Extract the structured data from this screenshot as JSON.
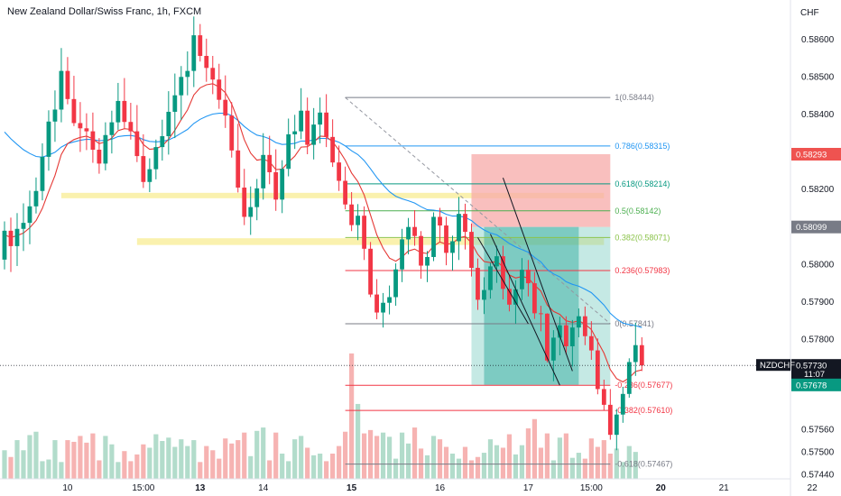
{
  "chart_data": {
    "type": "candlestick",
    "title": "New Zealand Dollar/Swiss Franc, 1h, FXCM",
    "currency": "CHF",
    "symbol": "NZDCHF",
    "ylim": [
      0.5743,
      0.5868
    ],
    "y_ticks": [
      {
        "value": 0.586,
        "label": "0.58600"
      },
      {
        "value": 0.585,
        "label": "0.58500"
      },
      {
        "value": 0.584,
        "label": "0.58400"
      },
      {
        "value": 0.582,
        "label": "0.58200"
      },
      {
        "value": 0.58,
        "label": "0.58000"
      },
      {
        "value": 0.579,
        "label": "0.57900"
      },
      {
        "value": 0.578,
        "label": "0.57800"
      },
      {
        "value": 0.5756,
        "label": "0.57560"
      },
      {
        "value": 0.575,
        "label": "0.57500"
      },
      {
        "value": 0.5744,
        "label": "0.57440"
      }
    ],
    "x_ticks": [
      {
        "bar": 10,
        "label": "10",
        "bold": false
      },
      {
        "bar": 22,
        "label": "15:00",
        "bold": false
      },
      {
        "bar": 31,
        "label": "13",
        "bold": true
      },
      {
        "bar": 41,
        "label": "14",
        "bold": false
      },
      {
        "bar": 55,
        "label": "15",
        "bold": true
      },
      {
        "bar": 69,
        "label": "16",
        "bold": false
      },
      {
        "bar": 83,
        "label": "17",
        "bold": false
      },
      {
        "bar": 93,
        "label": "15:00",
        "bold": false
      },
      {
        "bar": 104,
        "label": "20",
        "bold": true
      },
      {
        "bar": 114,
        "label": "21",
        "bold": false
      },
      {
        "bar": 128,
        "label": "22",
        "bold": false
      }
    ],
    "price_tags": [
      {
        "value": 0.58293,
        "label": "0.58293",
        "bg": "#ef5350",
        "fg": "#ffffff"
      },
      {
        "value": 0.58099,
        "label": "0.58099",
        "bg": "#787b86",
        "fg": "#ffffff"
      },
      {
        "value": 0.5773,
        "label": "0.57730",
        "sub": "11:07",
        "name": "NZDCHF",
        "bg": "#131722",
        "fg": "#ffffff"
      },
      {
        "value": 0.57678,
        "label": "0.57678",
        "bg": "#089981",
        "fg": "#ffffff"
      }
    ],
    "fib_levels": [
      {
        "ratio": "1",
        "value": 0.58444,
        "label": "1(0.58444)",
        "color": "#787b86"
      },
      {
        "ratio": "0.786",
        "value": 0.58315,
        "label": "0.786(0.58315)",
        "color": "#2196f3"
      },
      {
        "ratio": "0.618",
        "value": 0.58214,
        "label": "0.618(0.58214)",
        "color": "#089981"
      },
      {
        "ratio": "0.5",
        "value": 0.58142,
        "label": "0.5(0.58142)",
        "color": "#4caf50"
      },
      {
        "ratio": "0.382",
        "value": 0.58071,
        "label": "0.382(0.58071)",
        "color": "#8bc34a"
      },
      {
        "ratio": "0.236",
        "value": 0.57983,
        "label": "0.236(0.57983)",
        "color": "#f23645"
      },
      {
        "ratio": "0",
        "value": 0.57841,
        "label": "0(0.57841)",
        "color": "#787b86"
      },
      {
        "ratio": "-0.236",
        "value": 0.57677,
        "label": "-0.236(0.57677)",
        "color": "#f23645"
      },
      {
        "ratio": "-0.382",
        "value": 0.5761,
        "label": "-0.382(0.57610)",
        "color": "#f23645"
      },
      {
        "ratio": "-0.618",
        "value": 0.57467,
        "label": "-0.618(0.57467)",
        "color": "#787b86"
      }
    ],
    "position_box": {
      "entry": 0.58099,
      "stop": 0.58293,
      "target": 0.57678,
      "start_bar": 74,
      "end_bar": 96
    },
    "zones": [
      {
        "low": 0.5818,
        "high": 0.5819,
        "start_bar": 9,
        "end_bar": 95
      },
      {
        "low": 0.58051,
        "high": 0.58069,
        "start_bar": 21,
        "end_bar": 95
      }
    ],
    "candles": [
      [
        0.58012,
        0.58114,
        0.57986,
        0.58089
      ],
      [
        0.58089,
        0.58124,
        0.57979,
        0.58048
      ],
      [
        0.58048,
        0.58136,
        0.57995,
        0.58094
      ],
      [
        0.58094,
        0.58162,
        0.58035,
        0.5811
      ],
      [
        0.5811,
        0.58196,
        0.58053,
        0.58154
      ],
      [
        0.58154,
        0.58231,
        0.58135,
        0.58195
      ],
      [
        0.58195,
        0.58322,
        0.5817,
        0.58286
      ],
      [
        0.58286,
        0.5841,
        0.58249,
        0.5838
      ],
      [
        0.5838,
        0.58463,
        0.58326,
        0.58412
      ],
      [
        0.58412,
        0.58576,
        0.58378,
        0.58515
      ],
      [
        0.58515,
        0.58552,
        0.58426,
        0.5844
      ],
      [
        0.5844,
        0.58502,
        0.58368,
        0.58376
      ],
      [
        0.58376,
        0.58432,
        0.58299,
        0.58362
      ],
      [
        0.58362,
        0.58402,
        0.58304,
        0.58354
      ],
      [
        0.58354,
        0.58404,
        0.5827,
        0.58305
      ],
      [
        0.58305,
        0.58336,
        0.58241,
        0.58268
      ],
      [
        0.58268,
        0.58378,
        0.5825,
        0.58344
      ],
      [
        0.58344,
        0.58409,
        0.58295,
        0.58378
      ],
      [
        0.58378,
        0.58483,
        0.58358,
        0.58435
      ],
      [
        0.58435,
        0.58496,
        0.58362,
        0.58379
      ],
      [
        0.58379,
        0.5843,
        0.58332,
        0.58354
      ],
      [
        0.58354,
        0.58424,
        0.58272,
        0.58288
      ],
      [
        0.58288,
        0.58346,
        0.58203,
        0.58219
      ],
      [
        0.58219,
        0.58282,
        0.58192,
        0.58253
      ],
      [
        0.58253,
        0.58332,
        0.58226,
        0.58312
      ],
      [
        0.58312,
        0.58385,
        0.58276,
        0.58341
      ],
      [
        0.58341,
        0.58461,
        0.58292,
        0.58406
      ],
      [
        0.58406,
        0.58508,
        0.58336,
        0.5845
      ],
      [
        0.5845,
        0.58528,
        0.58384,
        0.58499
      ],
      [
        0.58499,
        0.58567,
        0.5845,
        0.58515
      ],
      [
        0.58515,
        0.5866,
        0.58472,
        0.5861
      ],
      [
        0.5861,
        0.5864,
        0.5854,
        0.58555
      ],
      [
        0.58555,
        0.58601,
        0.58486,
        0.58523
      ],
      [
        0.58523,
        0.58555,
        0.58453,
        0.58492
      ],
      [
        0.58492,
        0.58534,
        0.58414,
        0.58438
      ],
      [
        0.58438,
        0.58503,
        0.58363,
        0.58396
      ],
      [
        0.58396,
        0.58432,
        0.58284,
        0.58303
      ],
      [
        0.58303,
        0.58374,
        0.58191,
        0.58204
      ],
      [
        0.58204,
        0.58254,
        0.58104,
        0.58126
      ],
      [
        0.58126,
        0.58207,
        0.58078,
        0.58152
      ],
      [
        0.58152,
        0.58227,
        0.58117,
        0.58202
      ],
      [
        0.58202,
        0.58349,
        0.58172,
        0.58291
      ],
      [
        0.58291,
        0.58342,
        0.58213,
        0.58245
      ],
      [
        0.58245,
        0.58306,
        0.58142,
        0.58172
      ],
      [
        0.58172,
        0.58277,
        0.58136,
        0.58254
      ],
      [
        0.58254,
        0.58388,
        0.58234,
        0.58346
      ],
      [
        0.58346,
        0.58398,
        0.58307,
        0.58354
      ],
      [
        0.58354,
        0.58469,
        0.58333,
        0.58409
      ],
      [
        0.58409,
        0.58444,
        0.58293,
        0.58318
      ],
      [
        0.58318,
        0.58416,
        0.58279,
        0.58372
      ],
      [
        0.58372,
        0.58444,
        0.58322,
        0.58404
      ],
      [
        0.58404,
        0.58453,
        0.58312,
        0.58339
      ],
      [
        0.58339,
        0.58386,
        0.58259,
        0.58271
      ],
      [
        0.58271,
        0.58316,
        0.58195,
        0.58222
      ],
      [
        0.58222,
        0.5826,
        0.58146,
        0.58159
      ],
      [
        0.58159,
        0.58192,
        0.58088,
        0.58104
      ],
      [
        0.58104,
        0.5816,
        0.58064,
        0.58129
      ],
      [
        0.58129,
        0.58154,
        0.58011,
        0.58041
      ],
      [
        0.58041,
        0.58059,
        0.57912,
        0.57919
      ],
      [
        0.57919,
        0.5796,
        0.57853,
        0.57871
      ],
      [
        0.57871,
        0.57923,
        0.57831,
        0.57897
      ],
      [
        0.57897,
        0.57943,
        0.57866,
        0.57912
      ],
      [
        0.57912,
        0.58002,
        0.57889,
        0.57986
      ],
      [
        0.57986,
        0.58094,
        0.57952,
        0.58066
      ],
      [
        0.58066,
        0.58123,
        0.58026,
        0.58099
      ],
      [
        0.58099,
        0.58144,
        0.58049,
        0.58075
      ],
      [
        0.58075,
        0.58088,
        0.57961,
        0.57996
      ],
      [
        0.57996,
        0.58035,
        0.57952,
        0.58019
      ],
      [
        0.58019,
        0.58138,
        0.58008,
        0.58126
      ],
      [
        0.58126,
        0.5815,
        0.5806,
        0.58103
      ],
      [
        0.58103,
        0.58126,
        0.57997,
        0.5803
      ],
      [
        0.5803,
        0.58076,
        0.57983,
        0.58061
      ],
      [
        0.58061,
        0.58179,
        0.58011,
        0.58134
      ],
      [
        0.58134,
        0.58161,
        0.58039,
        0.58086
      ],
      [
        0.58086,
        0.58108,
        0.57967,
        0.5799
      ],
      [
        0.5799,
        0.58015,
        0.57878,
        0.57905
      ],
      [
        0.57905,
        0.57965,
        0.57867,
        0.57931
      ],
      [
        0.57931,
        0.58004,
        0.57908,
        0.57994
      ],
      [
        0.57994,
        0.58049,
        0.5795,
        0.58021
      ],
      [
        0.58021,
        0.58049,
        0.57906,
        0.57934
      ],
      [
        0.57934,
        0.57973,
        0.57874,
        0.57892
      ],
      [
        0.57892,
        0.57957,
        0.57841,
        0.57933
      ],
      [
        0.57933,
        0.58016,
        0.57904,
        0.57985
      ],
      [
        0.57985,
        0.58011,
        0.57914,
        0.57949
      ],
      [
        0.57949,
        0.57979,
        0.57854,
        0.57869
      ],
      [
        0.57869,
        0.57889,
        0.57821,
        0.57868
      ],
      [
        0.57868,
        0.57869,
        0.57738,
        0.57743
      ],
      [
        0.57743,
        0.57824,
        0.57688,
        0.57804
      ],
      [
        0.57804,
        0.5786,
        0.57757,
        0.57837
      ],
      [
        0.57837,
        0.57861,
        0.57759,
        0.57781
      ],
      [
        0.57781,
        0.57851,
        0.57727,
        0.57831
      ],
      [
        0.57831,
        0.57882,
        0.57805,
        0.57861
      ],
      [
        0.57861,
        0.57887,
        0.57784,
        0.57808
      ],
      [
        0.57808,
        0.57848,
        0.57745,
        0.5777
      ],
      [
        0.5777,
        0.57802,
        0.57653,
        0.57667
      ],
      [
        0.57667,
        0.57692,
        0.57609,
        0.57625
      ],
      [
        0.57625,
        0.57667,
        0.57532,
        0.57545
      ],
      [
        0.57545,
        0.57614,
        0.57504,
        0.57599
      ],
      [
        0.57599,
        0.57673,
        0.57577,
        0.57654
      ],
      [
        0.57654,
        0.57749,
        0.57644,
        0.57739
      ],
      [
        0.57739,
        0.57844,
        0.57702,
        0.57784
      ],
      [
        0.57784,
        0.57805,
        0.57715,
        0.5773
      ]
    ],
    "volume": [
      34,
      26,
      46,
      34,
      52,
      56,
      21,
      23,
      46,
      20,
      46,
      44,
      51,
      43,
      54,
      22,
      51,
      41,
      20,
      33,
      21,
      29,
      41,
      37,
      53,
      45,
      49,
      38,
      47,
      39,
      46,
      20,
      39,
      34,
      24,
      48,
      42,
      46,
      55,
      27,
      57,
      61,
      22,
      55,
      30,
      21,
      47,
      51,
      37,
      28,
      30,
      21,
      30,
      39,
      56,
      149,
      89,
      54,
      58,
      51,
      55,
      50,
      24,
      55,
      42,
      61,
      36,
      28,
      51,
      47,
      38,
      30,
      24,
      38,
      22,
      26,
      31,
      47,
      40,
      37,
      53,
      29,
      40,
      60,
      71,
      37,
      54,
      22,
      49,
      54,
      25,
      31,
      24,
      48,
      38,
      46,
      30,
      36,
      20,
      39,
      32
    ],
    "ema_fast": [
      0.58078,
      0.58071,
      0.58076,
      0.58083,
      0.58097,
      0.58116,
      0.58149,
      0.58194,
      0.58236,
      0.58292,
      0.58321,
      0.58332,
      0.58338,
      0.58341,
      0.58334,
      0.58321,
      0.58326,
      0.58336,
      0.58356,
      0.58361,
      0.58359,
      0.58345,
      0.58319,
      0.58306,
      0.58308,
      0.58315,
      0.58333,
      0.58357,
      0.58385,
      0.58411,
      0.58451,
      0.5847,
      0.58478,
      0.58481,
      0.58472,
      0.58457,
      0.58427,
      0.58384,
      0.58332,
      0.58296,
      0.58277,
      0.5828,
      0.58273,
      0.58252,
      0.58253,
      0.58272,
      0.58288,
      0.58312,
      0.58313,
      0.58325,
      0.58341,
      0.5834,
      0.58326,
      0.58304,
      0.58277,
      0.58243,
      0.5822,
      0.58184,
      0.58131,
      0.58078,
      0.58042,
      0.58016,
      0.58008,
      0.58019,
      0.58035,
      0.5804,
      0.58031,
      0.58028,
      0.58048,
      0.58059,
      0.58053,
      0.58055,
      0.5807,
      0.58074,
      0.58057,
      0.58026,
      0.58007,
      0.58004,
      0.58007,
      0.57993,
      0.57971,
      0.57963,
      0.57967,
      0.57963,
      0.57944,
      0.57928,
      0.57891,
      0.57874,
      0.57866,
      0.57849,
      0.57845,
      0.57849,
      0.5784,
      0.57826,
      0.57794,
      0.57763,
      0.57719,
      0.57695,
      0.57686,
      0.57697,
      0.57714,
      0.57718
    ],
    "ema_slow": [
      0.58352,
      0.58334,
      0.58319,
      0.58305,
      0.58295,
      0.58287,
      0.58285,
      0.58291,
      0.58298,
      0.58312,
      0.58321,
      0.58326,
      0.5833,
      0.58333,
      0.58332,
      0.58329,
      0.5833,
      0.58333,
      0.5834,
      0.58342,
      0.58343,
      0.5834,
      0.58332,
      0.58327,
      0.58326,
      0.58327,
      0.58331,
      0.58339,
      0.58349,
      0.58359,
      0.58375,
      0.58386,
      0.58394,
      0.584,
      0.58402,
      0.58402,
      0.58396,
      0.58383,
      0.58367,
      0.58354,
      0.58344,
      0.5834,
      0.58334,
      0.58324,
      0.58319,
      0.5832,
      0.58322,
      0.58328,
      0.58328,
      0.58331,
      0.58335,
      0.58335,
      0.58331,
      0.58325,
      0.58315,
      0.58302,
      0.58292,
      0.58276,
      0.58254,
      0.58231,
      0.58211,
      0.58193,
      0.58181,
      0.58174,
      0.58169,
      0.58163,
      0.58153,
      0.58145,
      0.58144,
      0.58141,
      0.58133,
      0.58128,
      0.58128,
      0.58125,
      0.58116,
      0.58102,
      0.58091,
      0.58083,
      0.58078,
      0.58067,
      0.58055,
      0.58046,
      0.58039,
      0.58032,
      0.58018,
      0.58006,
      0.57986,
      0.57974,
      0.57966,
      0.57953,
      0.57946,
      0.57941,
      0.57933,
      0.57924,
      0.57908,
      0.57891,
      0.57869,
      0.57854,
      0.57843,
      0.57839,
      0.57836,
      0.57831
    ]
  }
}
